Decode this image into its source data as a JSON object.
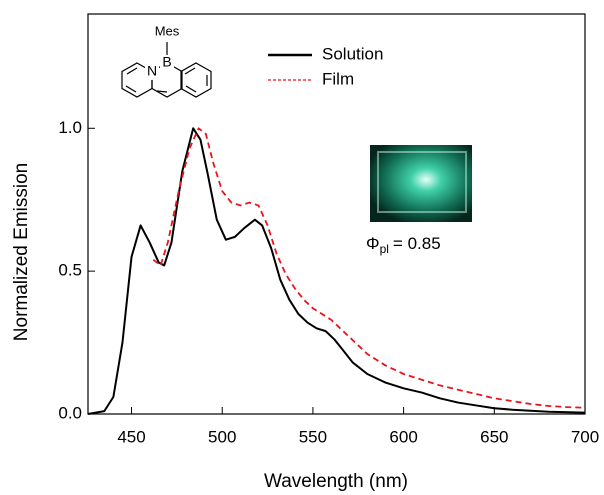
{
  "chart_data": {
    "type": "line",
    "x_label": "Wavelength (nm)",
    "y_label": "Normalized Emission",
    "xlim": [
      426,
      700
    ],
    "ylim": [
      0,
      1.4
    ],
    "xticks": [
      450,
      500,
      550,
      600,
      650,
      700
    ],
    "yticks": [
      {
        "value": 0,
        "label": "0.0"
      },
      {
        "value": 0.5,
        "label": "0.5"
      },
      {
        "value": 1,
        "label": "1.0"
      }
    ],
    "series": [
      {
        "name": "Solution",
        "color": "#000000",
        "dashed": false,
        "x": [
          426,
          435,
          440,
          445,
          450,
          455,
          460,
          465,
          468,
          472,
          478,
          484,
          488,
          492,
          497,
          502,
          507,
          512,
          518,
          522,
          527,
          532,
          537,
          542,
          547,
          552,
          557,
          562,
          567,
          572,
          580,
          590,
          600,
          610,
          620,
          630,
          640,
          650,
          660,
          680,
          700
        ],
        "values": [
          0,
          0.01,
          0.06,
          0.25,
          0.55,
          0.66,
          0.6,
          0.53,
          0.52,
          0.6,
          0.85,
          1.0,
          0.96,
          0.84,
          0.68,
          0.61,
          0.62,
          0.65,
          0.68,
          0.66,
          0.58,
          0.47,
          0.4,
          0.35,
          0.32,
          0.3,
          0.29,
          0.26,
          0.22,
          0.18,
          0.14,
          0.11,
          0.09,
          0.075,
          0.055,
          0.04,
          0.03,
          0.02,
          0.015,
          0.008,
          0.005
        ]
      },
      {
        "name": "Film",
        "color": "#e8141e",
        "dashed": true,
        "x": [
          462,
          466,
          470,
          476,
          482,
          487,
          491,
          495,
          500,
          505,
          510,
          515,
          520,
          525,
          530,
          535,
          540,
          545,
          550,
          555,
          560,
          565,
          570,
          580,
          590,
          600,
          610,
          620,
          630,
          640,
          650,
          660,
          670,
          680,
          690,
          700
        ],
        "values": [
          0.54,
          0.52,
          0.6,
          0.78,
          0.93,
          1.0,
          0.98,
          0.88,
          0.78,
          0.74,
          0.73,
          0.74,
          0.73,
          0.66,
          0.56,
          0.49,
          0.44,
          0.4,
          0.37,
          0.35,
          0.33,
          0.3,
          0.27,
          0.21,
          0.17,
          0.14,
          0.12,
          0.1,
          0.085,
          0.07,
          0.055,
          0.045,
          0.035,
          0.028,
          0.024,
          0.022
        ]
      }
    ],
    "annotation": {
      "symbol": "Φ",
      "subscript": "pl",
      "text": "= 0.85"
    },
    "molecule_labels": {
      "substituent": "Mes",
      "boron": "B",
      "nitrogen": "N"
    }
  }
}
